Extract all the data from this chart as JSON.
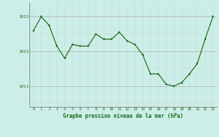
{
  "x": [
    0,
    1,
    2,
    3,
    4,
    5,
    6,
    7,
    8,
    9,
    10,
    11,
    12,
    13,
    14,
    15,
    16,
    17,
    18,
    19,
    20,
    21,
    22,
    23
  ],
  "y": [
    1012.6,
    1013.0,
    1012.75,
    1012.15,
    1011.8,
    1012.2,
    1012.15,
    1012.15,
    1012.5,
    1012.35,
    1012.35,
    1012.55,
    1012.3,
    1012.2,
    1011.9,
    1011.35,
    1011.35,
    1011.05,
    1011.0,
    1011.1,
    1011.35,
    1011.65,
    1012.35,
    1013.0
  ],
  "line_color": "#1a6b1a",
  "marker_color": "#1a6b1a",
  "bg_color": "#cceee8",
  "grid_color_major": "#aaaaaa",
  "grid_color_minor": "#cccccc",
  "xlabel": "Graphe pression niveau de la mer (hPa)",
  "xlabel_color": "#1a6b1a",
  "ylabel_ticks": [
    1011,
    1012,
    1013
  ],
  "xlim": [
    -0.5,
    23.5
  ],
  "ylim": [
    1010.4,
    1013.4
  ],
  "tick_color": "#1a6b1a",
  "spine_color": "#777777",
  "tick_fontsize": 4.0,
  "xlabel_fontsize": 5.5
}
